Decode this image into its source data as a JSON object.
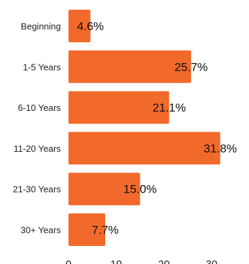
{
  "chart_data": {
    "type": "bar",
    "orientation": "horizontal",
    "categories": [
      "Beginning",
      "1-5 Years",
      "6-10 Years",
      "11-20 Years",
      "21-30 Years",
      "30+ Years"
    ],
    "values": [
      4.6,
      25.7,
      21.1,
      31.8,
      15.0,
      7.7
    ],
    "value_labels": [
      "4.6%",
      "25.7%",
      "21.1%",
      "31.8%",
      "15.0%",
      "7.7%"
    ],
    "x_ticks": [
      0,
      10,
      20,
      30
    ],
    "xlim": [
      0,
      35
    ],
    "bar_color": "#f26a2b",
    "grid": false,
    "title": "",
    "xlabel": "",
    "ylabel": ""
  }
}
